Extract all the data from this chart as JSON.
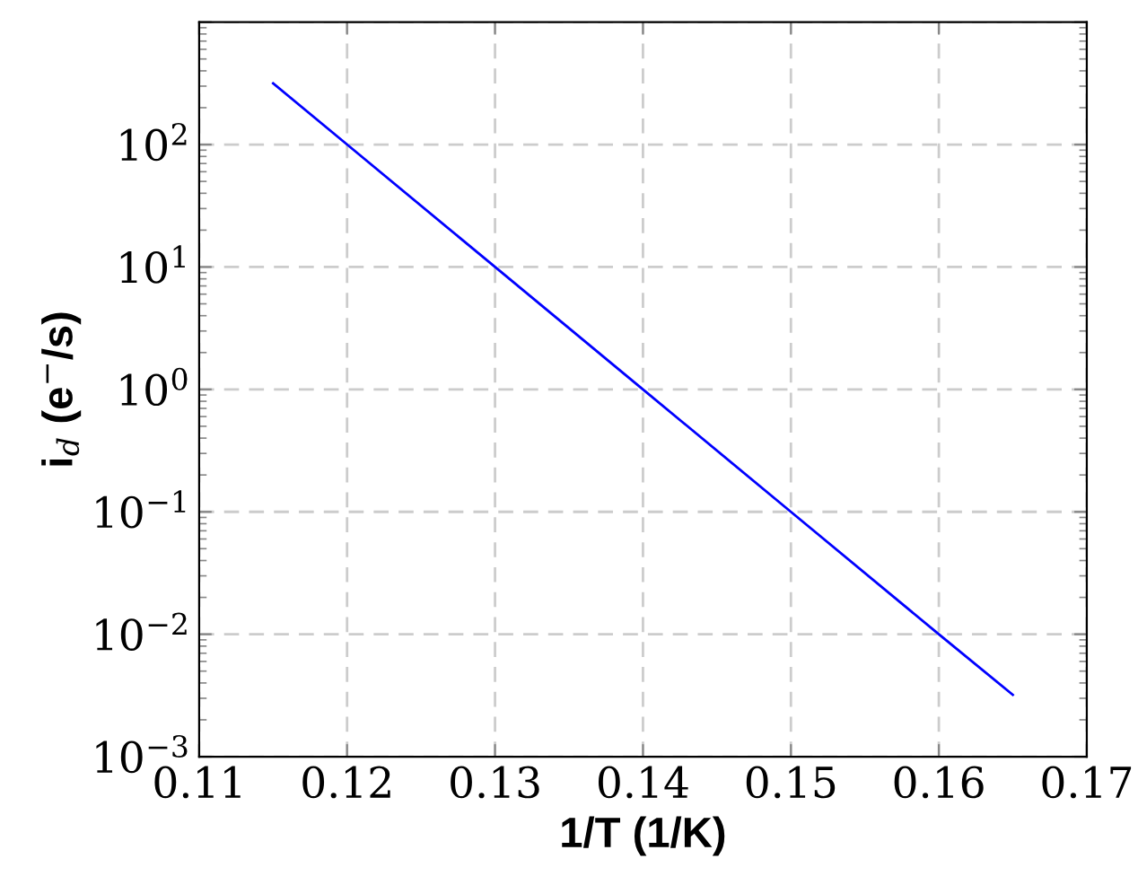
{
  "chart_data": {
    "type": "line",
    "xlabel": "1/T (1/K)",
    "ylabel": "i$_{d}$ (e$^{−}$/s)",
    "x": [
      0.115,
      0.12,
      0.13,
      0.14,
      0.15,
      0.16,
      0.165
    ],
    "series": [
      {
        "color": "#0000ff",
        "values": [
          316,
          100,
          10,
          1,
          0.1,
          0.01,
          0.0032
        ]
      }
    ],
    "log": "y",
    "xlim": [
      0.11,
      0.17
    ],
    "ylim": [
      0.001,
      1000
    ],
    "xticks": [
      0.11,
      0.12,
      0.13,
      0.14,
      0.15,
      0.16,
      0.17
    ],
    "yticks": [
      {
        "value": 0.001,
        "label": "10$^{−3}$"
      },
      {
        "value": 0.01,
        "label": "10$^{−2}$"
      },
      {
        "value": 0.1,
        "label": "10$^{−1}$"
      },
      {
        "value": 1,
        "label": "10$^{0}$"
      },
      {
        "value": 10,
        "label": "10$^{1}$"
      },
      {
        "value": 100,
        "label": "10$^{2}$"
      },
      {
        "value": 1000,
        "label": null
      }
    ],
    "grid": true,
    "marker": "none",
    "line_style": "solid"
  }
}
